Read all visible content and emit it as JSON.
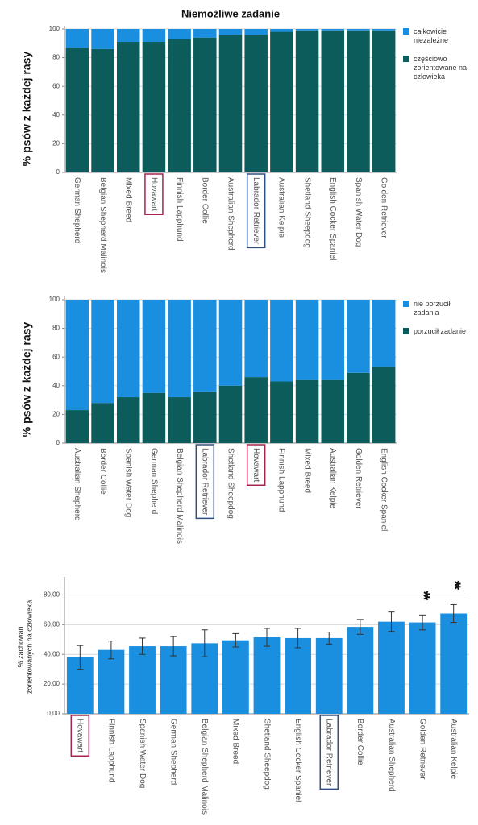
{
  "chart_data": [
    {
      "type": "stacked_bar",
      "title": "Niemożliwe zadanie",
      "ylabel": "% psów z każdej rasy",
      "categories": [
        "German Shepherd",
        "Belgian Shepherd Malinois",
        "Mixed Breed",
        "Hovawart",
        "Finnish Lapphund",
        "Border Collie",
        "Australian Shepherd",
        "Labrador Retriever",
        "Australian Kelpie",
        "Shetland Sheepdog",
        "English Cocker Spaniel",
        "Spanish Water Dog",
        "Golden Retriever"
      ],
      "series": [
        {
          "name": "częściowo zorientowane na człowieka",
          "color": "#0b5c5a",
          "values": [
            87,
            86,
            91,
            91,
            93,
            94,
            96,
            96,
            98,
            99,
            99,
            99,
            99
          ]
        },
        {
          "name": "całkowicie niezależne",
          "color": "#1a8fe0",
          "values": [
            13,
            14,
            9,
            9,
            7,
            6,
            4,
            4,
            2,
            1,
            1,
            1,
            1
          ]
        }
      ],
      "ylim": [
        0,
        100
      ],
      "yticks": [
        0,
        20,
        40,
        60,
        80,
        100
      ],
      "grid": true,
      "highlights": [
        {
          "index": 3,
          "color": "#a3264f"
        },
        {
          "index": 7,
          "color": "#2f5085"
        }
      ]
    },
    {
      "type": "stacked_bar",
      "ylabel": "% psów z każdej rasy",
      "categories": [
        "Australian Shepherd",
        "Border Collie",
        "Spanish Water Dog",
        "German Shepherd",
        "Belgian Shepherd Malinois",
        "Labrador Retriever",
        "Shetland Sheepdog",
        "Hovawart",
        "Finnish Lapphund",
        "Mixed Breed",
        "Australian Kelpie",
        "Golden Retriever",
        "English Cocker Spaniel"
      ],
      "series": [
        {
          "name": "porzucił zadanie",
          "color": "#0b5c5a",
          "values": [
            23,
            28,
            32,
            35,
            32,
            36,
            40,
            46,
            43,
            44,
            44,
            49,
            53
          ]
        },
        {
          "name": "nie porzucił zadania",
          "color": "#1a8fe0",
          "values": [
            77,
            72,
            68,
            65,
            68,
            64,
            60,
            54,
            57,
            56,
            56,
            51,
            47
          ]
        }
      ],
      "ylim": [
        0,
        100
      ],
      "yticks": [
        0,
        20,
        40,
        60,
        80,
        100
      ],
      "grid": true,
      "highlights": [
        {
          "index": 5,
          "color": "#2f5085"
        },
        {
          "index": 7,
          "color": "#a3264f"
        }
      ]
    },
    {
      "type": "bar_error",
      "ylabel": [
        "% zachowań",
        "zorientowanych na człowieka"
      ],
      "categories": [
        "Hovawart",
        "Finnish Lapphund",
        "Spanish Water Dog",
        "German Shepherd",
        "Belgian Shepherd Malinois",
        "Mixed Breed",
        "Shetland Sheepdog",
        "English Cocker Spaniel",
        "Labrador Retriever",
        "Border Collie",
        "Australian Shepherd",
        "Golden Retriever",
        "Australian Kelpie"
      ],
      "values": [
        38,
        43,
        45.5,
        45.5,
        47.5,
        49.5,
        51.5,
        51,
        51,
        58.5,
        62,
        61.5,
        67.5
      ],
      "errors": [
        8,
        6,
        5.5,
        6.5,
        9,
        4.5,
        6,
        6.5,
        4,
        5,
        6.5,
        5,
        6
      ],
      "color": "#1a8fe0",
      "ylim": [
        0,
        90
      ],
      "yticks": [
        {
          "value": 0,
          "label": "0,00"
        },
        {
          "value": 20,
          "label": "20,00"
        },
        {
          "value": 40,
          "label": "40,00"
        },
        {
          "value": 60,
          "label": "60,00"
        },
        {
          "value": 80,
          "label": "80,00"
        }
      ],
      "grid": true,
      "annotations": [
        {
          "index": 11,
          "text": "**"
        },
        {
          "index": 12,
          "text": "**"
        }
      ],
      "highlights": [
        {
          "index": 0,
          "color": "#a3264f"
        },
        {
          "index": 8,
          "color": "#2f5085"
        }
      ]
    }
  ]
}
